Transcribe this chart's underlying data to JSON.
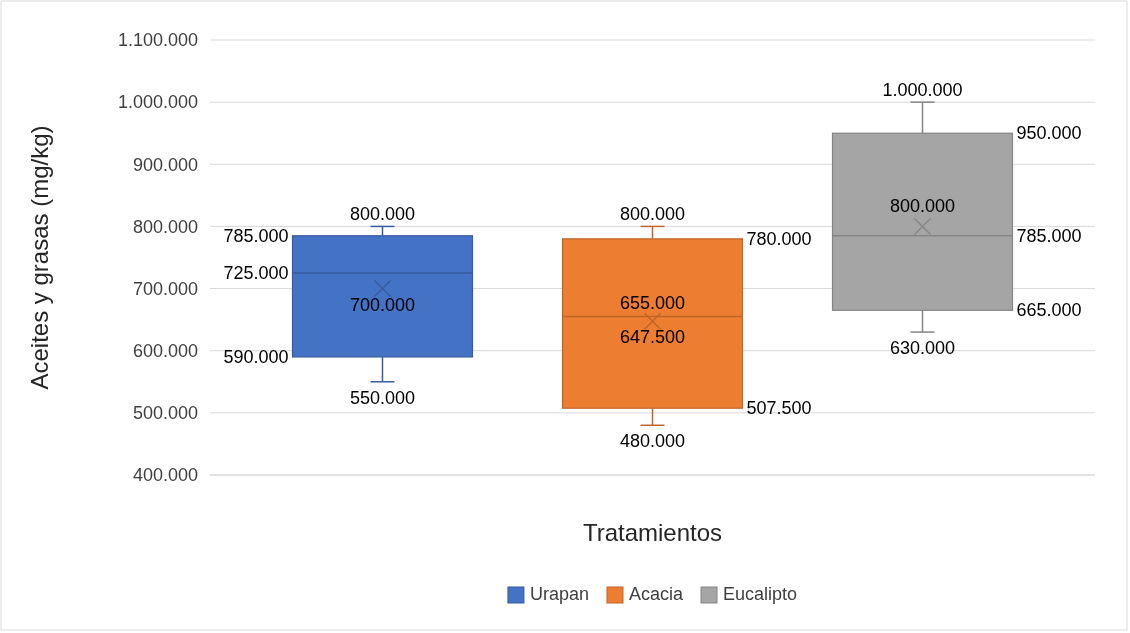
{
  "chart_data": {
    "type": "box",
    "xlabel": "Tratamientos",
    "ylabel": "Aceites y grasas (mg/kg)",
    "categories": [
      null
    ],
    "ylim": [
      400000,
      1100000
    ],
    "yticks": [
      {
        "value": 400000,
        "label": "400.000"
      },
      {
        "value": 500000,
        "label": "500.000"
      },
      {
        "value": 600000,
        "label": "600.000"
      },
      {
        "value": 700000,
        "label": "700.000"
      },
      {
        "value": 800000,
        "label": "800.000"
      },
      {
        "value": 900000,
        "label": "900.000"
      },
      {
        "value": 1000000,
        "label": "1.000.000"
      },
      {
        "value": 1100000,
        "label": "1.100.000"
      }
    ],
    "grid": "y",
    "legend": "bottom",
    "series": [
      {
        "name": "Urapan",
        "color": "#4472c4",
        "boxes": [
          {
            "low": 550000,
            "q1": 590000,
            "median": 725000,
            "q3": 785000,
            "high": 800000,
            "mean": 700000
          }
        ],
        "value_labels": [
          [
            "550.000",
            "590.000",
            "725.000",
            "785.000",
            "800.000",
            "700.000"
          ]
        ]
      },
      {
        "name": "Acacia",
        "color": "#ed7d31",
        "boxes": [
          {
            "low": 480000,
            "q1": 507500,
            "median": 655000,
            "q3": 780000,
            "high": 800000,
            "mean": 647500
          }
        ],
        "value_labels": [
          [
            "480.000",
            "507.500",
            "655.000",
            "780.000",
            "800.000",
            "647.500"
          ]
        ]
      },
      {
        "name": "Eucalipto",
        "color": "#a5a5a5",
        "boxes": [
          {
            "low": 630000,
            "q1": 665000,
            "median": 785000,
            "q3": 950000,
            "high": 1000000,
            "mean": 800000
          }
        ],
        "value_labels": [
          [
            "630.000",
            "665.000",
            "785.000",
            "950.000",
            "1.000.000",
            "800.000"
          ]
        ]
      }
    ]
  }
}
